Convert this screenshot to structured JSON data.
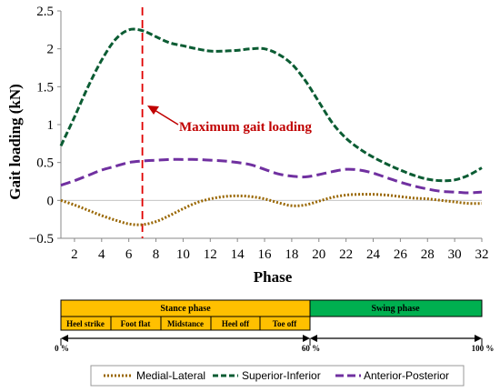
{
  "chart_data": {
    "type": "line",
    "xlabel": "Phase",
    "ylabel": "Gait loading (kN)",
    "xlim": [
      1,
      32
    ],
    "ylim": [
      -0.5,
      2.5
    ],
    "x_ticks": [
      2,
      4,
      6,
      8,
      10,
      12,
      14,
      16,
      18,
      20,
      22,
      24,
      26,
      28,
      30,
      32
    ],
    "y_ticks": [
      -0.5,
      0,
      0.5,
      1,
      1.5,
      2,
      2.5
    ],
    "y_tick_labels": [
      "−0.5",
      "0",
      "0.5",
      "1",
      "1.5",
      "2",
      "2.5"
    ],
    "x": [
      1,
      2,
      3,
      4,
      5,
      6,
      7,
      8,
      9,
      10,
      11,
      12,
      13,
      14,
      15,
      16,
      17,
      18,
      19,
      20,
      21,
      22,
      23,
      24,
      25,
      26,
      27,
      28,
      29,
      30,
      31,
      32
    ],
    "series": [
      {
        "name": "Medial-Lateral",
        "color": "#996600",
        "dash": "dotted",
        "values": [
          0.0,
          -0.06,
          -0.13,
          -0.2,
          -0.26,
          -0.31,
          -0.32,
          -0.28,
          -0.2,
          -0.11,
          -0.03,
          0.02,
          0.05,
          0.06,
          0.05,
          0.02,
          -0.03,
          -0.07,
          -0.06,
          -0.01,
          0.04,
          0.07,
          0.08,
          0.08,
          0.07,
          0.05,
          0.03,
          0.02,
          0.0,
          -0.02,
          -0.04,
          -0.04
        ]
      },
      {
        "name": "Superior-Inferior",
        "color": "#0b5c33",
        "dash": "dashed",
        "values": [
          0.72,
          1.1,
          1.5,
          1.85,
          2.12,
          2.25,
          2.24,
          2.16,
          2.08,
          2.04,
          2.0,
          1.97,
          1.97,
          1.98,
          2.0,
          2.0,
          1.93,
          1.8,
          1.58,
          1.3,
          1.02,
          0.82,
          0.68,
          0.57,
          0.48,
          0.4,
          0.33,
          0.28,
          0.26,
          0.27,
          0.33,
          0.43
        ]
      },
      {
        "name": "Anterior-Posterior",
        "color": "#7030a0",
        "dash": "longdash",
        "values": [
          0.2,
          0.26,
          0.33,
          0.4,
          0.45,
          0.5,
          0.52,
          0.53,
          0.54,
          0.54,
          0.54,
          0.53,
          0.52,
          0.5,
          0.47,
          0.41,
          0.35,
          0.32,
          0.31,
          0.34,
          0.38,
          0.41,
          0.4,
          0.36,
          0.3,
          0.24,
          0.19,
          0.15,
          0.12,
          0.11,
          0.1,
          0.11
        ]
      }
    ],
    "marker_line": {
      "x": 7,
      "color": "#e00000"
    },
    "annotation": {
      "text": "Maximum gait loading",
      "color": "#c00000"
    },
    "legend_position": "bottom",
    "grid": false
  },
  "phase_bar": {
    "stance_label": "Stance phase",
    "swing_label": "Swing phase",
    "stance_color": "#ffc000",
    "swing_color": "#00b050",
    "sub_phases": [
      "Heel strike",
      "Foot flat",
      "Midstance",
      "Heel off",
      "Toe off"
    ],
    "pct_start": "0 %",
    "pct_mid": "60 %",
    "pct_end": "100 %"
  }
}
